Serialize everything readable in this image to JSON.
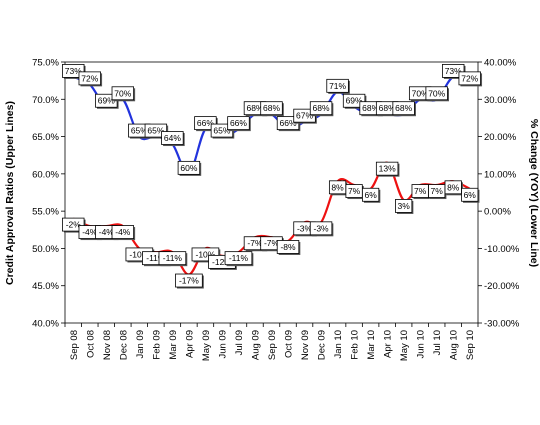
{
  "chart_data": {
    "type": "line",
    "categories": [
      "Sep 08",
      "Oct 08",
      "Nov 08",
      "Dec 08",
      "Jan 09",
      "Feb 09",
      "Mar 09",
      "Apr 09",
      "May 09",
      "Jun 09",
      "Jul 09",
      "Aug 09",
      "Sep 09",
      "Oct 09",
      "Nov 09",
      "Dec 09",
      "Jan 10",
      "Feb 10",
      "Mar 10",
      "Apr 10",
      "May 10",
      "Jun 10",
      "Jul 10",
      "Aug 10",
      "Sep 10"
    ],
    "ylabel_left": "Credit Approval Ratios (Upper Lines)",
    "ylabel_right": "% Change (YOY) (Lower Line)",
    "ylim_left": [
      40,
      75
    ],
    "ylim_right": [
      -30,
      40
    ],
    "yticks_left": [
      "40.0%",
      "45.0%",
      "50.0%",
      "55.0%",
      "60.0%",
      "65.0%",
      "70.0%",
      "75.0%"
    ],
    "yticks_right": [
      "-30.00%",
      "-20.00%",
      "-10.00%",
      "0.00%",
      "10.00%",
      "20.00%",
      "30.00%",
      "40.00%"
    ],
    "grid": false,
    "legend": "none",
    "series": [
      {
        "axis": "left",
        "color": "#2233dd",
        "values": [
          73,
          72,
          69,
          70,
          65,
          65,
          64,
          60,
          66,
          65,
          66,
          68,
          68,
          66,
          67,
          68,
          71,
          69,
          68,
          68,
          68,
          70,
          70,
          73,
          72
        ],
        "labels": [
          "73%",
          "72%",
          "69%",
          "70%",
          "65%",
          "65%",
          "64%",
          "60%",
          "66%",
          "65%",
          "66%",
          "68%",
          "68%",
          "66%",
          "67%",
          "68%",
          "71%",
          "69%",
          "68%",
          "68%",
          "68%",
          "70%",
          "70%",
          "73%",
          "72%"
        ]
      },
      {
        "axis": "right",
        "color": "#ee1111",
        "values": [
          -2,
          -4,
          -4,
          -4,
          -10,
          -11,
          -11,
          -17,
          -10,
          -12,
          -11,
          -7,
          -7,
          -8,
          -3,
          -3,
          8,
          7,
          6,
          13,
          3,
          7,
          7,
          8,
          6
        ],
        "labels": [
          "-2%",
          "-4%",
          "-4%",
          "-4%",
          "-10%",
          "-11%",
          "-11%",
          "-17%",
          "-10%",
          "-12%",
          "-11%",
          "-7%",
          "-7%",
          "-8%",
          "-3%",
          "-3%",
          "8%",
          "7%",
          "6%",
          "13%",
          "3%",
          "7%",
          "7%",
          "8%",
          "6%"
        ]
      }
    ]
  }
}
